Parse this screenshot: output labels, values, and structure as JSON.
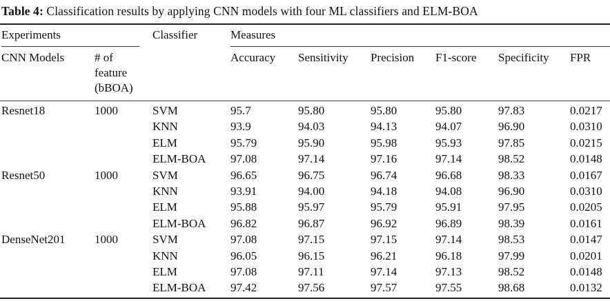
{
  "caption": {
    "label": "Table 4:",
    "text": "Classification results by applying CNN models with four ML classifiers and ELM-BOA"
  },
  "header": {
    "experiments": "Experiments",
    "classifier": "Classifier",
    "measures": "Measures",
    "cnn_models": "CNN Models",
    "num_feature": "# of feature (bBOA)",
    "num_feature_lines": [
      "# of",
      "feature",
      "(bBOA)"
    ],
    "columns": [
      "Accuracy",
      "Sensitivity",
      "Precision",
      "F1-score",
      "Specificity",
      "FPR"
    ]
  },
  "groups": [
    {
      "model": "Resnet18",
      "features": "1000",
      "rows": [
        {
          "classifier": "SVM",
          "values": [
            "95.7",
            "95.80",
            "95.80",
            "95.80",
            "97.83",
            "0.0217"
          ]
        },
        {
          "classifier": "KNN",
          "values": [
            "93.9",
            "94.03",
            "94.13",
            "94.07",
            "96.90",
            "0.0310"
          ]
        },
        {
          "classifier": "ELM",
          "values": [
            "95.79",
            "95.90",
            "95.98",
            "95.93",
            "97.85",
            "0.0215"
          ]
        },
        {
          "classifier": "ELM-BOA",
          "values": [
            "97.08",
            "97.14",
            "97.16",
            "97.14",
            "98.52",
            "0.0148"
          ]
        }
      ]
    },
    {
      "model": "Resnet50",
      "features": "1000",
      "rows": [
        {
          "classifier": "SVM",
          "values": [
            "96.65",
            "96.75",
            "96.74",
            "96.68",
            "98.33",
            "0.0167"
          ]
        },
        {
          "classifier": "KNN",
          "values": [
            "93.91",
            "94.00",
            "94.18",
            "94.08",
            "96.90",
            "0.0310"
          ]
        },
        {
          "classifier": "ELM",
          "values": [
            "95.88",
            "95.97",
            "95.79",
            "95.91",
            "97.95",
            "0.0205"
          ]
        },
        {
          "classifier": "ELM-BOA",
          "values": [
            "96.82",
            "96.87",
            "96.92",
            "96.89",
            "98.39",
            "0.0161"
          ]
        }
      ]
    },
    {
      "model": "DenseNet201",
      "features": "1000",
      "rows": [
        {
          "classifier": "SVM",
          "values": [
            "97.08",
            "97.15",
            "97.15",
            "97.14",
            "98.53",
            "0.0147"
          ]
        },
        {
          "classifier": "KNN",
          "values": [
            "96.05",
            "96.15",
            "96.21",
            "96.18",
            "97.99",
            "0.0201"
          ]
        },
        {
          "classifier": "ELM",
          "values": [
            "97.08",
            "97.11",
            "97.14",
            "97.13",
            "98.52",
            "0.0148"
          ]
        },
        {
          "classifier": "ELM-BOA",
          "values": [
            "97.42",
            "97.56",
            "97.57",
            "97.55",
            "98.68",
            "0.0132"
          ]
        }
      ]
    }
  ]
}
